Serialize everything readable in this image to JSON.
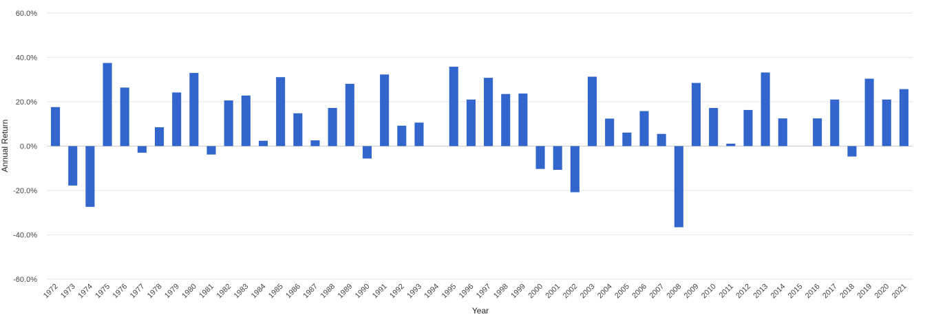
{
  "chart_data": {
    "type": "bar",
    "xlabel": "Year",
    "ylabel": "Annual Return",
    "ylim": [
      -60,
      60
    ],
    "yticks": [
      60,
      40,
      20,
      0,
      -20,
      -40,
      -60
    ],
    "ytick_labels": [
      "60.0%",
      "40.0%",
      "20.0%",
      "0.0%",
      "-20.0%",
      "-40.0%",
      "-60.0%"
    ],
    "grid": true,
    "legend": "none",
    "bar_color": "#3366cc",
    "categories": [
      "1972",
      "1973",
      "1974",
      "1975",
      "1976",
      "1977",
      "1978",
      "1979",
      "1980",
      "1981",
      "1982",
      "1983",
      "1984",
      "1985",
      "1986",
      "1987",
      "1988",
      "1989",
      "1990",
      "1991",
      "1992",
      "1993",
      "1994",
      "1995",
      "1996",
      "1997",
      "1998",
      "1999",
      "2000",
      "2001",
      "2002",
      "2003",
      "2004",
      "2005",
      "2006",
      "2007",
      "2008",
      "2009",
      "2010",
      "2011",
      "2012",
      "2013",
      "2014",
      "2015",
      "2016",
      "2017",
      "2018",
      "2019",
      "2020",
      "2021"
    ],
    "values": [
      17.6,
      -17.8,
      -27.4,
      37.5,
      26.4,
      -3.0,
      8.5,
      24.2,
      33.0,
      -3.8,
      20.6,
      22.8,
      2.4,
      31.1,
      14.8,
      2.6,
      17.2,
      28.1,
      -5.6,
      32.3,
      9.2,
      10.6,
      0.0,
      35.8,
      21.0,
      30.8,
      23.5,
      23.7,
      -10.3,
      -10.7,
      -20.8,
      31.3,
      12.4,
      6.1,
      15.8,
      5.5,
      -36.6,
      28.5,
      17.2,
      1.1,
      16.3,
      33.2,
      12.5,
      0.0,
      12.5,
      21.0,
      -4.7,
      30.4,
      21.0,
      25.7
    ]
  }
}
